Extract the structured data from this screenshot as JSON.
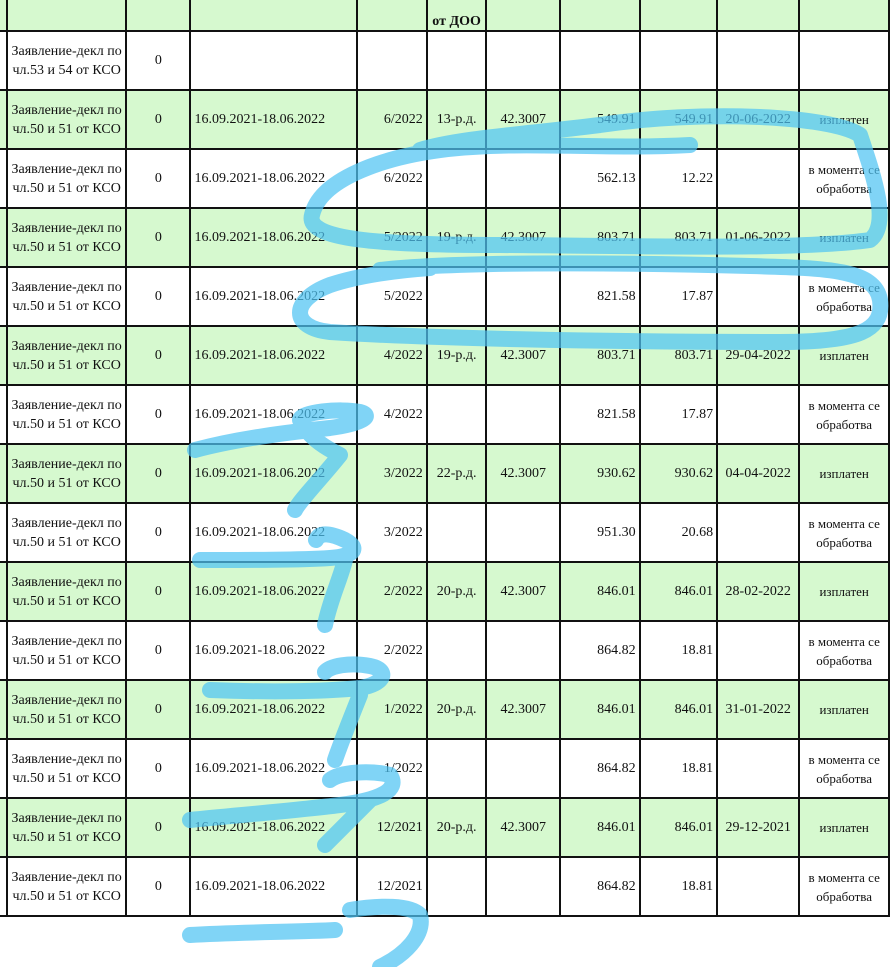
{
  "header": {
    "col_doo": "от ДОО"
  },
  "rows": [
    {
      "type": "Заявление-декл по чл.53 и 54 от КСО",
      "num": "0",
      "period": "",
      "month": "",
      "days": "",
      "rate": "",
      "amount": "",
      "paid": "",
      "date": "",
      "status": "",
      "shade": "white"
    },
    {
      "type": "Заявление-декл по чл.50 и 51 от КСО",
      "num": "0",
      "period": "16.09.2021-18.06.2022",
      "month": "6/2022",
      "days": "13-р.д.",
      "rate": "42.3007",
      "amount": "549.91",
      "paid": "549.91",
      "date": "20-06-2022",
      "status": "изплатен",
      "shade": "green"
    },
    {
      "type": "Заявление-декл по чл.50 и 51 от КСО",
      "num": "0",
      "period": "16.09.2021-18.06.2022",
      "month": "6/2022",
      "days": "",
      "rate": "",
      "amount": "562.13",
      "paid": "12.22",
      "date": "",
      "status": "в момента се обработва",
      "shade": "white"
    },
    {
      "type": "Заявление-декл по чл.50 и 51 от КСО",
      "num": "0",
      "period": "16.09.2021-18.06.2022",
      "month": "5/2022",
      "days": "19-р.д.",
      "rate": "42.3007",
      "amount": "803.71",
      "paid": "803.71",
      "date": "01-06-2022",
      "status": "изплатен",
      "shade": "green"
    },
    {
      "type": "Заявление-декл по чл.50 и 51 от КСО",
      "num": "0",
      "period": "16.09.2021-18.06.2022",
      "month": "5/2022",
      "days": "",
      "rate": "",
      "amount": "821.58",
      "paid": "17.87",
      "date": "",
      "status": "в момента се обработва",
      "shade": "white"
    },
    {
      "type": "Заявление-декл по чл.50 и 51 от КСО",
      "num": "0",
      "period": "16.09.2021-18.06.2022",
      "month": "4/2022",
      "days": "19-р.д.",
      "rate": "42.3007",
      "amount": "803.71",
      "paid": "803.71",
      "date": "29-04-2022",
      "status": "изплатен",
      "shade": "green"
    },
    {
      "type": "Заявление-декл по чл.50 и 51 от КСО",
      "num": "0",
      "period": "16.09.2021-18.06.2022",
      "month": "4/2022",
      "days": "",
      "rate": "",
      "amount": "821.58",
      "paid": "17.87",
      "date": "",
      "status": "в момента се обработва",
      "shade": "white"
    },
    {
      "type": "Заявление-декл по чл.50 и 51 от КСО",
      "num": "0",
      "period": "16.09.2021-18.06.2022",
      "month": "3/2022",
      "days": "22-р.д.",
      "rate": "42.3007",
      "amount": "930.62",
      "paid": "930.62",
      "date": "04-04-2022",
      "status": "изплатен",
      "shade": "green"
    },
    {
      "type": "Заявление-декл по чл.50 и 51 от КСО",
      "num": "0",
      "period": "16.09.2021-18.06.2022",
      "month": "3/2022",
      "days": "",
      "rate": "",
      "amount": "951.30",
      "paid": "20.68",
      "date": "",
      "status": "в момента се обработва",
      "shade": "white"
    },
    {
      "type": "Заявление-декл по чл.50 и 51 от КСО",
      "num": "0",
      "period": "16.09.2021-18.06.2022",
      "month": "2/2022",
      "days": "20-р.д.",
      "rate": "42.3007",
      "amount": "846.01",
      "paid": "846.01",
      "date": "28-02-2022",
      "status": "изплатен",
      "shade": "green"
    },
    {
      "type": "Заявление-декл по чл.50 и 51 от КСО",
      "num": "0",
      "period": "16.09.2021-18.06.2022",
      "month": "2/2022",
      "days": "",
      "rate": "",
      "amount": "864.82",
      "paid": "18.81",
      "date": "",
      "status": "в момента се обработва",
      "shade": "white"
    },
    {
      "type": "Заявление-декл по чл.50 и 51 от КСО",
      "num": "0",
      "period": "16.09.2021-18.06.2022",
      "month": "1/2022",
      "days": "20-р.д.",
      "rate": "42.3007",
      "amount": "846.01",
      "paid": "846.01",
      "date": "31-01-2022",
      "status": "изплатен",
      "shade": "green"
    },
    {
      "type": "Заявление-декл по чл.50 и 51 от КСО",
      "num": "0",
      "period": "16.09.2021-18.06.2022",
      "month": "1/2022",
      "days": "",
      "rate": "",
      "amount": "864.82",
      "paid": "18.81",
      "date": "",
      "status": "в момента се обработва",
      "shade": "white"
    },
    {
      "type": "Заявление-декл по чл.50 и 51 от КСО",
      "num": "0",
      "period": "16.09.2021-18.06.2022",
      "month": "12/2021",
      "days": "20-р.д.",
      "rate": "42.3007",
      "amount": "846.01",
      "paid": "846.01",
      "date": "29-12-2021",
      "status": "изплатен",
      "shade": "green"
    },
    {
      "type": "Заявление-декл по чл.50 и 51 от КСО",
      "num": "0",
      "period": "16.09.2021-18.06.2022",
      "month": "12/2021",
      "days": "",
      "rate": "",
      "amount": "864.82",
      "paid": "18.81",
      "date": "",
      "status": "в момента се обработва",
      "shade": "white"
    }
  ],
  "colors": {
    "row_green": "#d6f9cf",
    "row_white": "#ffffff",
    "scribble": "#4fc3f2"
  }
}
